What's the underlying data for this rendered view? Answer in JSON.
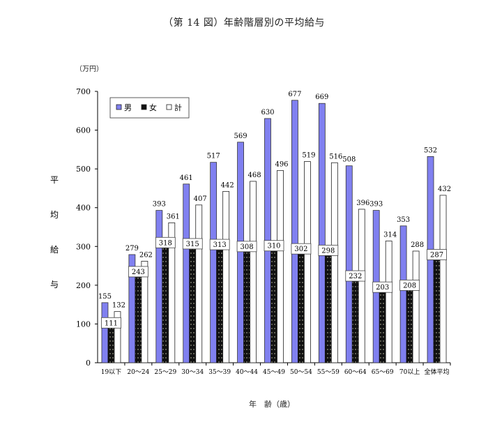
{
  "chart_data": {
    "type": "bar",
    "title": "（第 14 図）年齢階層別の平均給与",
    "unit": "（万円）",
    "ylabel": "平均給与",
    "xlabel": "年　齢（歳）",
    "ylim": [
      0,
      700
    ],
    "yticks": [
      0,
      100,
      200,
      300,
      400,
      500,
      600,
      700
    ],
    "grid": false,
    "legend_position": "top-left",
    "categories": [
      "19以下",
      "20～24",
      "25～29",
      "30～34",
      "35～39",
      "40～44",
      "45～49",
      "50～54",
      "55～59",
      "60～64",
      "65～69",
      "70以上",
      "全体平均"
    ],
    "series": [
      {
        "name": "男",
        "color": "#8080f0",
        "pattern": "solid",
        "values": [
          155,
          279,
          393,
          461,
          517,
          569,
          630,
          677,
          669,
          508,
          393,
          353,
          532
        ]
      },
      {
        "name": "女",
        "color": "#111111",
        "pattern": "dotted",
        "values": [
          111,
          243,
          318,
          315,
          313,
          308,
          310,
          302,
          298,
          232,
          203,
          208,
          287
        ]
      },
      {
        "name": "計",
        "color": "#ffffff",
        "pattern": "outline",
        "values": [
          132,
          262,
          361,
          407,
          442,
          468,
          496,
          519,
          516,
          396,
          314,
          288,
          432
        ]
      }
    ]
  }
}
